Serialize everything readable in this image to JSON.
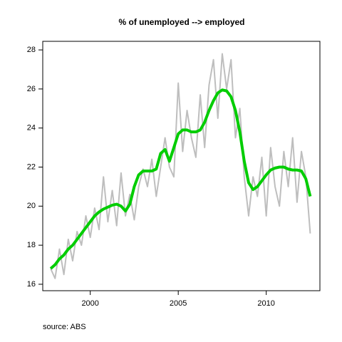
{
  "chart_data": {
    "type": "line",
    "title": "% of unemployed --> employed",
    "annotation": "source: ABS",
    "x": [
      1997.75,
      1998,
      1998.25,
      1998.5,
      1998.75,
      1999,
      1999.25,
      1999.5,
      1999.75,
      2000,
      2000.25,
      2000.5,
      2000.75,
      2001,
      2001.25,
      2001.5,
      2001.75,
      2002,
      2002.25,
      2002.5,
      2002.75,
      2003,
      2003.25,
      2003.5,
      2003.75,
      2004,
      2004.25,
      2004.5,
      2004.75,
      2005,
      2005.25,
      2005.5,
      2005.75,
      2006,
      2006.25,
      2006.5,
      2006.75,
      2007,
      2007.25,
      2007.5,
      2007.75,
      2008,
      2008.25,
      2008.5,
      2008.75,
      2009,
      2009.25,
      2009.5,
      2009.75,
      2010,
      2010.25,
      2010.5,
      2010.75,
      2011,
      2011.25,
      2011.5,
      2011.75,
      2012,
      2012.25,
      2012.5
    ],
    "series": [
      {
        "color": "#bebebe",
        "width": 2,
        "values": [
          16.8,
          16.3,
          17.8,
          16.5,
          18.3,
          17.2,
          18.7,
          18.0,
          19.5,
          18.4,
          19.9,
          18.8,
          21.5,
          19.2,
          20.8,
          19.0,
          21.7,
          19.5,
          20.6,
          19.3,
          21.0,
          21.9,
          21.0,
          22.4,
          20.5,
          22.0,
          23.5,
          22.0,
          21.5,
          26.3,
          22.8,
          24.9,
          23.5,
          22.5,
          25.7,
          23.0,
          26.2,
          27.5,
          24.5,
          27.8,
          26.0,
          27.5,
          23.5,
          25.0,
          21.5,
          19.5,
          21.5,
          20.5,
          22.5,
          19.5,
          23.0,
          21.0,
          20.0,
          22.8,
          21.0,
          23.5,
          20.2,
          22.8,
          21.5,
          18.6
        ]
      },
      {
        "color": "#00cd00",
        "width": 4,
        "values": [
          16.8,
          17.0,
          17.3,
          17.5,
          17.8,
          18.0,
          18.3,
          18.6,
          18.9,
          19.2,
          19.5,
          19.7,
          19.85,
          19.95,
          20.05,
          20.1,
          20.0,
          19.75,
          20.1,
          21.0,
          21.6,
          21.8,
          21.8,
          21.8,
          21.9,
          22.7,
          22.9,
          22.3,
          23.0,
          23.7,
          23.9,
          23.9,
          23.8,
          23.8,
          23.9,
          24.3,
          24.9,
          25.4,
          25.8,
          25.95,
          25.9,
          25.6,
          24.9,
          23.8,
          22.3,
          21.2,
          20.85,
          21.0,
          21.3,
          21.6,
          21.85,
          21.95,
          22.0,
          22.0,
          21.9,
          21.85,
          21.85,
          21.8,
          21.4,
          20.5
        ]
      }
    ],
    "xlim": [
      1997.3,
      2013.05
    ],
    "xticks": [
      2000,
      2005,
      2010
    ],
    "ylim": [
      15.67,
      28.44
    ],
    "yticks": [
      16,
      18,
      20,
      22,
      24,
      26,
      28
    ]
  }
}
